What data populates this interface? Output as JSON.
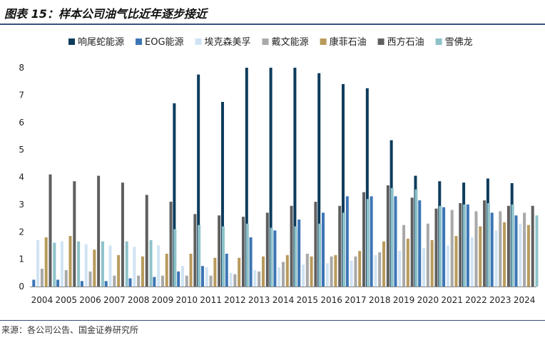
{
  "header": {
    "title": "图表 15：样本公司油气比近年逐步接近"
  },
  "footer": {
    "source": "来源：各公司公告、国金证券研究所"
  },
  "chart_data": {
    "type": "bar",
    "categories": [
      "2004",
      "2005",
      "2006",
      "2007",
      "2008",
      "2009",
      "2010",
      "2011",
      "2012",
      "2013",
      "2014",
      "2015",
      "2016",
      "2017",
      "2018",
      "2019",
      "2020",
      "2021",
      "2022",
      "2023",
      "2024"
    ],
    "ylim": [
      0,
      8
    ],
    "yticks": [
      0,
      1,
      2,
      3,
      4,
      5,
      6,
      7,
      8
    ],
    "legend_position": "top",
    "grid": false,
    "series": [
      {
        "name": "响尾蛇能源",
        "color": "#0d3c5c",
        "values": [
          0,
          0,
          0,
          0,
          0,
          0,
          6.7,
          7.75,
          6.75,
          8,
          8,
          8,
          7.8,
          7.4,
          7.25,
          5.35,
          4.05,
          3.85,
          3.8,
          3.95,
          3.78
        ]
      },
      {
        "name": "EOG能源",
        "color": "#3c75b5",
        "values": [
          0.25,
          0.25,
          0.2,
          0.2,
          0.3,
          0.35,
          0.55,
          0.75,
          1.2,
          1.8,
          2.05,
          2.45,
          2.7,
          3.3,
          3.3,
          3.3,
          3.15,
          2.9,
          3.0,
          2.7,
          2.6
        ]
      },
      {
        "name": "埃克森美孚",
        "color": "#d0e3f3",
        "values": [
          1.7,
          1.65,
          1.55,
          1.5,
          1.45,
          1.5,
          0.75,
          0.7,
          0.5,
          0.6,
          0.7,
          0.8,
          0.85,
          0.95,
          1.15,
          1.3,
          1.4,
          1.5,
          1.8,
          2.05,
          2.3
        ]
      },
      {
        "name": "戴文能源",
        "color": "#a8a8a8",
        "values": [
          0.65,
          0.6,
          0.55,
          0.4,
          0.4,
          0.4,
          0.4,
          0.4,
          0.45,
          0.55,
          0.9,
          1.2,
          1.1,
          1.1,
          1.25,
          2.25,
          2.3,
          2.8,
          2.75,
          2.75,
          2.7
        ]
      },
      {
        "name": "康菲石油",
        "color": "#b89a5c",
        "values": [
          1.8,
          1.85,
          1.35,
          1.15,
          1.1,
          1.2,
          1.2,
          1.05,
          1.05,
          1.1,
          1.15,
          1.1,
          1.15,
          1.3,
          1.65,
          1.75,
          1.7,
          1.85,
          2.2,
          2.35,
          2.25
        ]
      },
      {
        "name": "西方石油",
        "color": "#5f5f5f",
        "values": [
          4.1,
          3.85,
          4.05,
          3.8,
          3.35,
          3.1,
          2.65,
          2.6,
          2.55,
          2.7,
          2.95,
          3.1,
          2.95,
          3.45,
          3.7,
          3.25,
          2.85,
          3.05,
          3.15,
          2.95,
          2.95
        ]
      },
      {
        "name": "雪佛龙",
        "color": "#8ec2c9",
        "values": [
          1.6,
          1.65,
          1.65,
          1.65,
          1.7,
          2.1,
          2.25,
          2.2,
          2.3,
          2.15,
          2.2,
          2.3,
          2.7,
          3.2,
          3.6,
          3.55,
          2.95,
          3.0,
          3.05,
          3.0,
          2.6
        ]
      }
    ]
  }
}
